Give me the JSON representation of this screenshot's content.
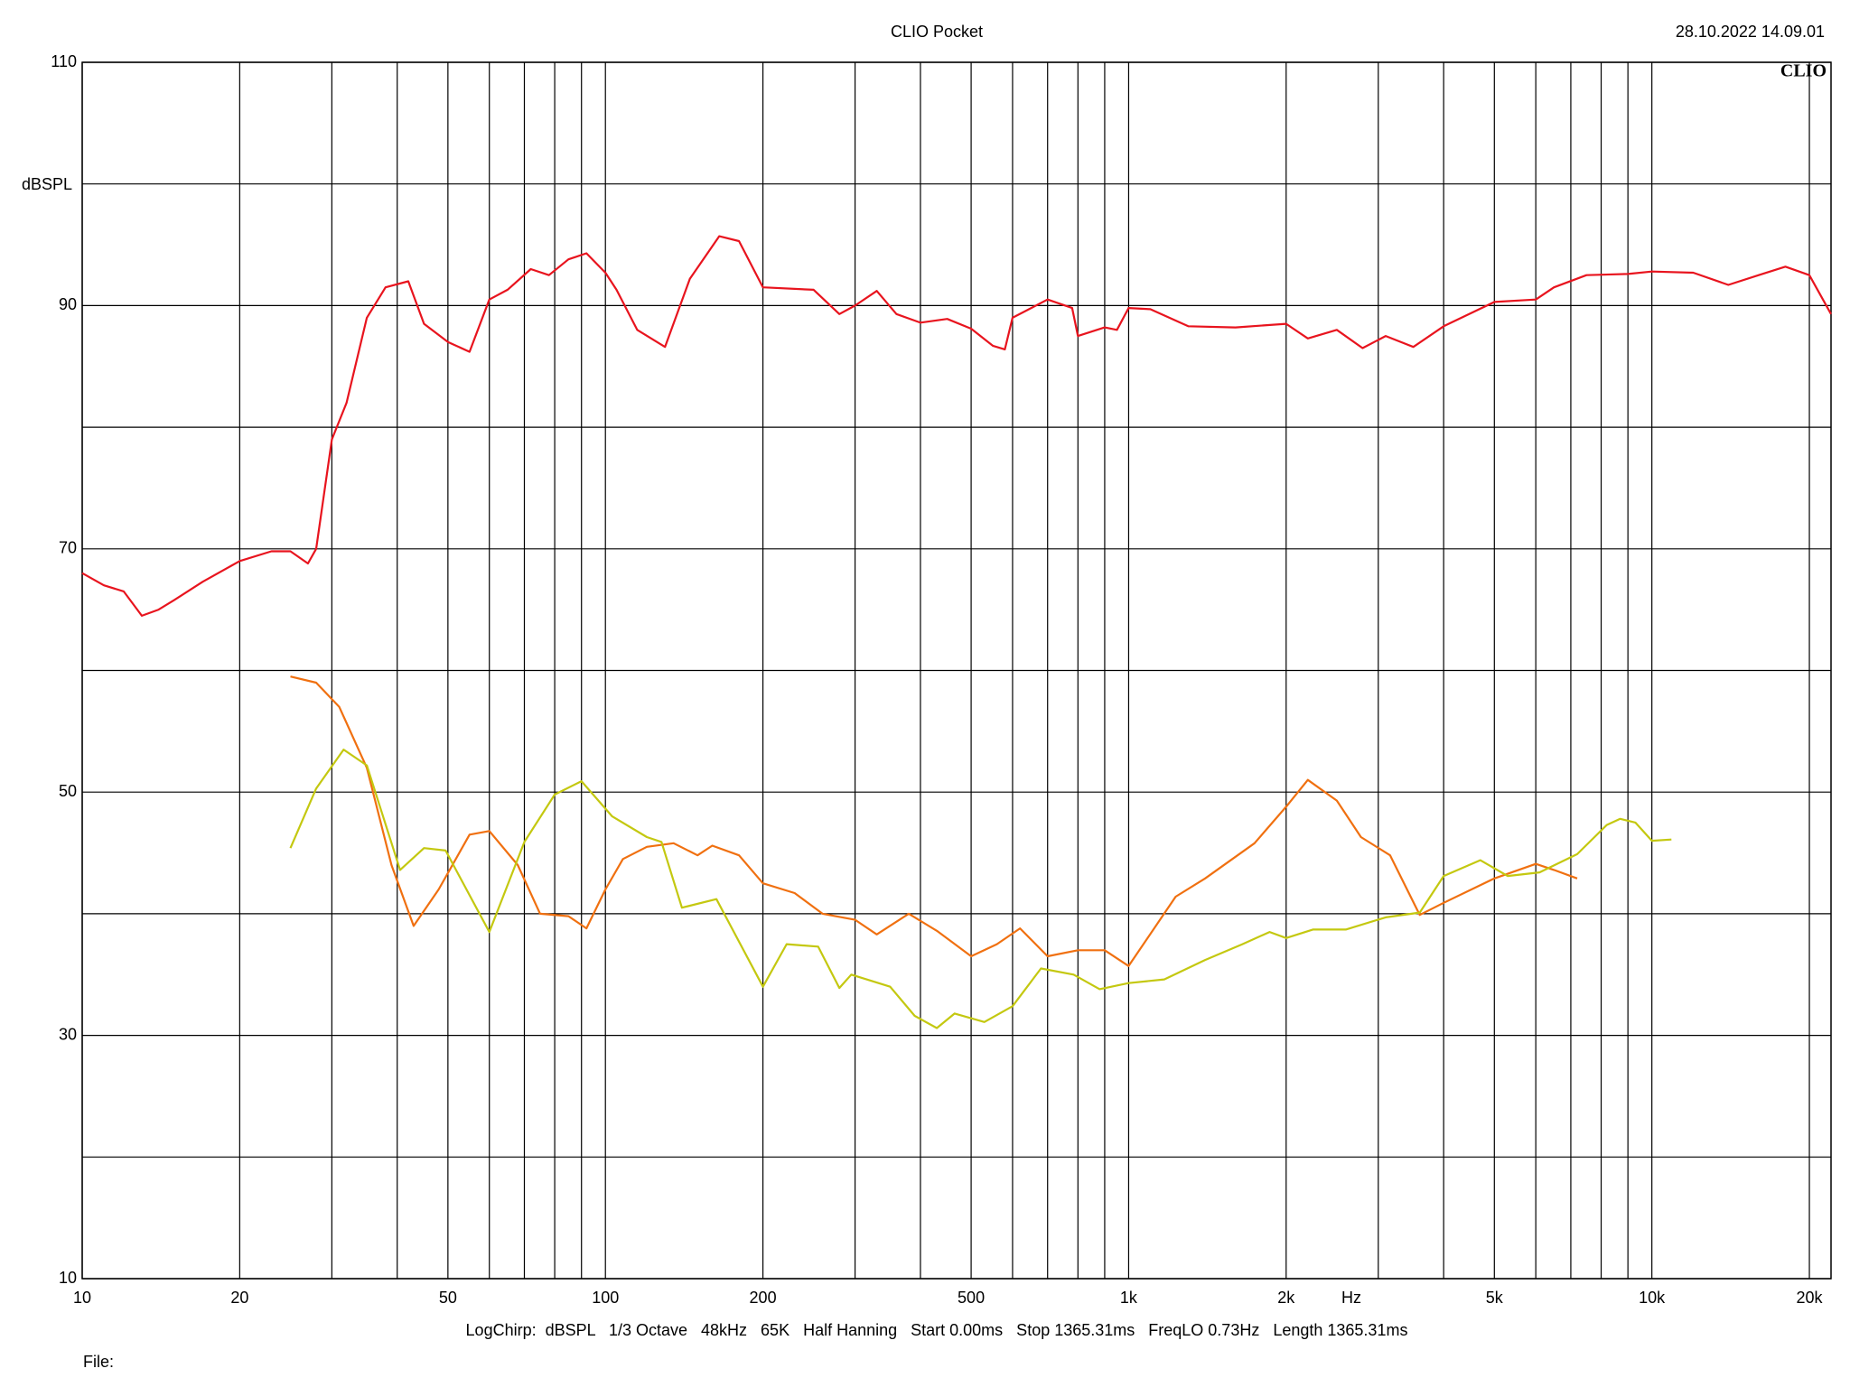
{
  "chart_data": {
    "type": "line",
    "title": "CLIO Pocket",
    "timestamp": "28.10.2022 14.09.01",
    "logo": "CLIO",
    "ylabel": "dBSPL",
    "xlabel": "Hz",
    "footer": "LogChirp:  dBSPL   1/3 Octave   48kHz   65K   Half Hanning   Start 0.00ms   Stop 1365.31ms   FreqLO 0.73Hz   Length 1365.31ms",
    "file_label": "File:",
    "xscale": "log",
    "grid": true,
    "xlim": [
      10,
      22000
    ],
    "ylim": [
      10,
      110
    ],
    "xticks": [
      10,
      20,
      50,
      100,
      200,
      500,
      {
        "value": 1000,
        "label": "1k"
      },
      {
        "value": 2000,
        "label": "2k"
      },
      {
        "value": 5000,
        "label": "5k"
      },
      {
        "value": 10000,
        "label": "10k"
      },
      {
        "value": 20000,
        "label": "20k"
      }
    ],
    "xticks_minor": [
      30,
      40,
      60,
      70,
      80,
      90,
      300,
      400,
      600,
      700,
      800,
      900,
      3000,
      4000,
      6000,
      7000,
      8000,
      9000
    ],
    "yticks": [
      10,
      30,
      50,
      70,
      90,
      110
    ],
    "yticks_minor": [
      20,
      40,
      60,
      80,
      100
    ],
    "series": [
      {
        "color": "#e8141e",
        "x": [
          10,
          11,
          12,
          13,
          14,
          15,
          17,
          20,
          23,
          25,
          27,
          28,
          30,
          32,
          35,
          38,
          42,
          45,
          50,
          55,
          60,
          65,
          72,
          78,
          85,
          92,
          100,
          105,
          115,
          130,
          145,
          165,
          180,
          200,
          250,
          280,
          300,
          330,
          360,
          400,
          450,
          500,
          550,
          580,
          600,
          700,
          780,
          800,
          900,
          950,
          1000,
          1100,
          1300,
          1600,
          2000,
          2200,
          2500,
          2800,
          3100,
          3500,
          4000,
          5000,
          6000,
          6500,
          7500,
          9000,
          10000,
          12000,
          14000,
          16000,
          18000,
          20000,
          22000
        ],
        "values": [
          68,
          67,
          66.5,
          64.5,
          65,
          65.8,
          67.3,
          69,
          69.8,
          69.8,
          68.8,
          70,
          79,
          82,
          89,
          91.5,
          92,
          88.5,
          87,
          86.2,
          90.5,
          91.3,
          93,
          92.5,
          93.8,
          94.3,
          92.7,
          91.3,
          88,
          86.6,
          92.2,
          95.7,
          95.3,
          91.5,
          91.3,
          89.3,
          90,
          91.2,
          89.3,
          88.6,
          88.9,
          88.1,
          86.7,
          86.4,
          89,
          90.5,
          89.8,
          87.5,
          88.2,
          88,
          89.8,
          89.7,
          88.3,
          88.2,
          88.5,
          87.3,
          88,
          86.5,
          87.5,
          86.6,
          88.3,
          90.3,
          90.5,
          91.5,
          92.5,
          92.6,
          92.8,
          92.7,
          91.7,
          92.5,
          93.2,
          92.5,
          89.3
        ]
      },
      {
        "color": "#f07010",
        "x": [
          25,
          28,
          31,
          35,
          39,
          43,
          48,
          55,
          60,
          68,
          75,
          85,
          92,
          100,
          108,
          120,
          135,
          150,
          160,
          180,
          200,
          230,
          260,
          300,
          330,
          380,
          430,
          500,
          560,
          620,
          700,
          800,
          900,
          1000,
          1230,
          1400,
          1740,
          2000,
          2200,
          2500,
          2780,
          3160,
          3600,
          4000,
          5000,
          6000,
          6500,
          7200
        ],
        "values": [
          59.5,
          59,
          57,
          52,
          44,
          39,
          42,
          46.5,
          46.8,
          44,
          40,
          39.8,
          38.8,
          42,
          44.5,
          45.5,
          45.8,
          44.8,
          45.6,
          44.8,
          42.5,
          41.7,
          40,
          39.5,
          38.3,
          40,
          38.6,
          36.5,
          37.5,
          38.8,
          36.5,
          37,
          37,
          35.7,
          41.4,
          42.9,
          45.8,
          48.8,
          51,
          49.3,
          46.3,
          44.8,
          39.9,
          40.9,
          42.9,
          44.1,
          43.6,
          42.9
        ]
      },
      {
        "color": "#c4c810",
        "x": [
          25,
          28,
          31.6,
          35,
          40.5,
          45,
          49.5,
          60,
          70,
          80,
          90,
          103,
          120,
          128,
          140,
          163,
          200,
          222,
          255,
          280,
          295,
          350,
          390,
          430,
          465,
          530,
          600,
          680,
          785,
          880,
          1000,
          1170,
          1400,
          1650,
          1860,
          2000,
          2250,
          2600,
          3100,
          3600,
          4000,
          4700,
          5300,
          6100,
          7200,
          8200,
          8700,
          9300,
          10000,
          10900
        ],
        "values": [
          45.4,
          50.3,
          53.5,
          52.2,
          43.6,
          45.4,
          45.2,
          38.5,
          45.9,
          49.8,
          50.9,
          48,
          46.3,
          45.9,
          40.5,
          41.2,
          34,
          37.5,
          37.3,
          33.9,
          35,
          34,
          31.6,
          30.6,
          31.8,
          31.1,
          32.4,
          35.5,
          35,
          33.8,
          34.3,
          34.6,
          36.2,
          37.5,
          38.5,
          38,
          38.7,
          38.7,
          39.7,
          40.1,
          43.1,
          44.4,
          43.1,
          43.4,
          44.9,
          47.3,
          47.8,
          47.5,
          46,
          46.1
        ]
      }
    ]
  }
}
